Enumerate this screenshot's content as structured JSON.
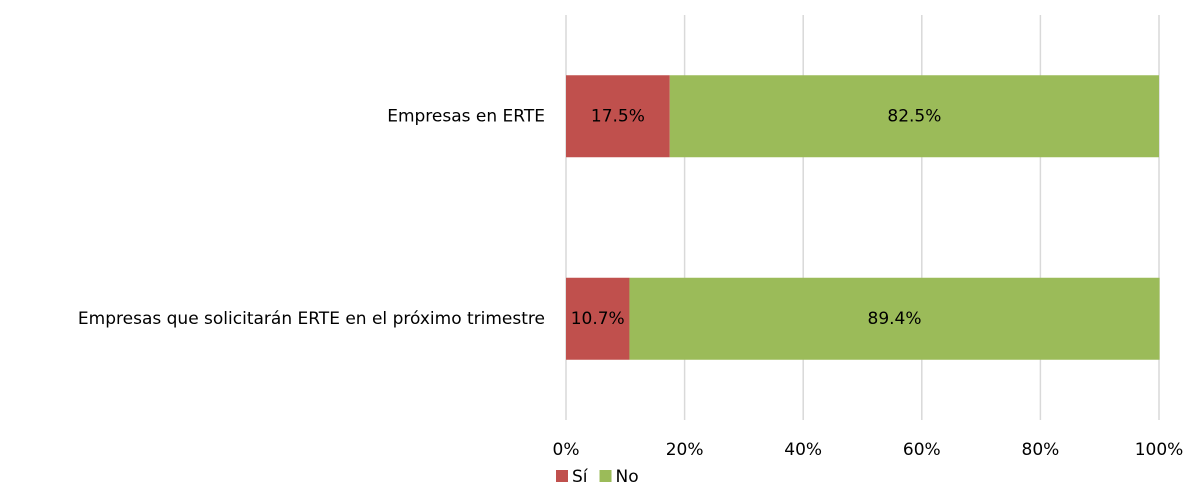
{
  "chart_data": {
    "type": "bar",
    "orientation": "horizontal",
    "stacked": true,
    "categories": [
      "Empresas en ERTE",
      "Empresas que solicitarán ERTE en el próximo trimestre"
    ],
    "series": [
      {
        "name": "Sí",
        "color": "#c0504d",
        "values": [
          17.5,
          10.7
        ],
        "value_labels": [
          "17.5%",
          "10.7%"
        ]
      },
      {
        "name": "No",
        "color": "#9bbb59",
        "values": [
          82.5,
          89.4
        ],
        "value_labels": [
          "82.5%",
          "89.4%"
        ]
      }
    ],
    "xlim": [
      0,
      100
    ],
    "xticks": [
      {
        "value": 0,
        "label": "0%"
      },
      {
        "value": 20,
        "label": "20%"
      },
      {
        "value": 40,
        "label": "40%"
      },
      {
        "value": 60,
        "label": "60%"
      },
      {
        "value": 80,
        "label": "80%"
      },
      {
        "value": 100,
        "label": "100%"
      }
    ],
    "grid": true,
    "legend": "bottom"
  }
}
